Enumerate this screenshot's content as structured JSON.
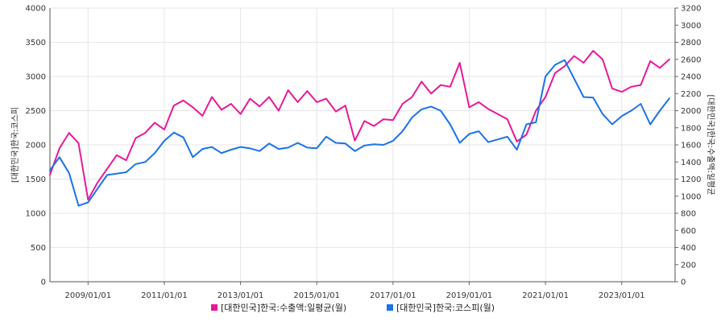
{
  "chart_data": {
    "type": "line",
    "grid": true,
    "legend_position": "bottom-center",
    "x_ticks": [
      "2009/01/01",
      "2011/01/01",
      "2013/01/01",
      "2015/01/01",
      "2017/01/01",
      "2019/01/01",
      "2021/01/01",
      "2023/01/01"
    ],
    "y_left": {
      "label": "[대한민국]한국:코스피",
      "min": 0,
      "max": 4000,
      "ticks": [
        0,
        500,
        1000,
        1500,
        2000,
        2500,
        3000,
        3500,
        4000
      ]
    },
    "y_right": {
      "label": "[대한민국]한국:수출액:일평균",
      "min": 0,
      "max": 3200,
      "ticks": [
        0,
        200,
        400,
        600,
        800,
        1000,
        1200,
        1400,
        1600,
        1800,
        2000,
        2200,
        2400,
        2600,
        2800,
        3000,
        3200
      ]
    },
    "series": [
      {
        "name": "[대한민국]한국:수출액:일평균(월)",
        "axis": "right",
        "color": "#e8189a",
        "points": [
          [
            "2008/01",
            1250
          ],
          [
            "2008/04",
            1560
          ],
          [
            "2008/07",
            1740
          ],
          [
            "2008/10",
            1620
          ],
          [
            "2009/01",
            960
          ],
          [
            "2009/04",
            1160
          ],
          [
            "2009/07",
            1320
          ],
          [
            "2009/10",
            1480
          ],
          [
            "2010/01",
            1420
          ],
          [
            "2010/04",
            1680
          ],
          [
            "2010/07",
            1740
          ],
          [
            "2010/10",
            1860
          ],
          [
            "2011/01",
            1780
          ],
          [
            "2011/04",
            2060
          ],
          [
            "2011/07",
            2120
          ],
          [
            "2011/10",
            2040
          ],
          [
            "2012/01",
            1940
          ],
          [
            "2012/04",
            2160
          ],
          [
            "2012/07",
            2010
          ],
          [
            "2012/10",
            2080
          ],
          [
            "2013/01",
            1960
          ],
          [
            "2013/04",
            2140
          ],
          [
            "2013/07",
            2050
          ],
          [
            "2013/10",
            2160
          ],
          [
            "2014/01",
            2000
          ],
          [
            "2014/04",
            2240
          ],
          [
            "2014/07",
            2100
          ],
          [
            "2014/10",
            2230
          ],
          [
            "2015/01",
            2100
          ],
          [
            "2015/04",
            2140
          ],
          [
            "2015/07",
            1990
          ],
          [
            "2015/10",
            2060
          ],
          [
            "2016/01",
            1650
          ],
          [
            "2016/04",
            1880
          ],
          [
            "2016/07",
            1820
          ],
          [
            "2016/10",
            1900
          ],
          [
            "2017/01",
            1890
          ],
          [
            "2017/04",
            2080
          ],
          [
            "2017/07",
            2160
          ],
          [
            "2017/10",
            2340
          ],
          [
            "2018/01",
            2200
          ],
          [
            "2018/04",
            2300
          ],
          [
            "2018/07",
            2280
          ],
          [
            "2018/10",
            2560
          ],
          [
            "2019/01",
            2040
          ],
          [
            "2019/04",
            2100
          ],
          [
            "2019/07",
            2020
          ],
          [
            "2019/10",
            1960
          ],
          [
            "2020/01",
            1900
          ],
          [
            "2020/04",
            1640
          ],
          [
            "2020/07",
            1720
          ],
          [
            "2020/10",
            2000
          ],
          [
            "2021/01",
            2160
          ],
          [
            "2021/04",
            2440
          ],
          [
            "2021/07",
            2520
          ],
          [
            "2021/10",
            2640
          ],
          [
            "2022/01",
            2560
          ],
          [
            "2022/04",
            2700
          ],
          [
            "2022/07",
            2600
          ],
          [
            "2022/10",
            2260
          ],
          [
            "2023/01",
            2220
          ],
          [
            "2023/04",
            2280
          ],
          [
            "2023/07",
            2300
          ],
          [
            "2023/10",
            2580
          ],
          [
            "2024/01",
            2500
          ],
          [
            "2024/04",
            2600
          ]
        ]
      },
      {
        "name": "[대한민국]한국:코스피(월)",
        "axis": "left",
        "color": "#1a73e8",
        "points": [
          [
            "2008/01",
            1630
          ],
          [
            "2008/04",
            1820
          ],
          [
            "2008/07",
            1590
          ],
          [
            "2008/10",
            1110
          ],
          [
            "2009/01",
            1160
          ],
          [
            "2009/04",
            1360
          ],
          [
            "2009/07",
            1560
          ],
          [
            "2009/10",
            1580
          ],
          [
            "2010/01",
            1600
          ],
          [
            "2010/04",
            1720
          ],
          [
            "2010/07",
            1750
          ],
          [
            "2010/10",
            1880
          ],
          [
            "2011/01",
            2060
          ],
          [
            "2011/04",
            2180
          ],
          [
            "2011/07",
            2110
          ],
          [
            "2011/10",
            1820
          ],
          [
            "2012/01",
            1940
          ],
          [
            "2012/04",
            1970
          ],
          [
            "2012/07",
            1880
          ],
          [
            "2012/10",
            1930
          ],
          [
            "2013/01",
            1970
          ],
          [
            "2013/04",
            1950
          ],
          [
            "2013/07",
            1910
          ],
          [
            "2013/10",
            2020
          ],
          [
            "2014/01",
            1940
          ],
          [
            "2014/04",
            1960
          ],
          [
            "2014/07",
            2030
          ],
          [
            "2014/10",
            1960
          ],
          [
            "2015/01",
            1950
          ],
          [
            "2015/04",
            2120
          ],
          [
            "2015/07",
            2030
          ],
          [
            "2015/10",
            2020
          ],
          [
            "2016/01",
            1910
          ],
          [
            "2016/04",
            1990
          ],
          [
            "2016/07",
            2010
          ],
          [
            "2016/10",
            2000
          ],
          [
            "2017/01",
            2060
          ],
          [
            "2017/04",
            2200
          ],
          [
            "2017/07",
            2400
          ],
          [
            "2017/10",
            2520
          ],
          [
            "2018/01",
            2560
          ],
          [
            "2018/04",
            2500
          ],
          [
            "2018/07",
            2300
          ],
          [
            "2018/10",
            2030
          ],
          [
            "2019/01",
            2160
          ],
          [
            "2019/04",
            2200
          ],
          [
            "2019/07",
            2040
          ],
          [
            "2019/10",
            2080
          ],
          [
            "2020/01",
            2120
          ],
          [
            "2020/04",
            1930
          ],
          [
            "2020/07",
            2300
          ],
          [
            "2020/10",
            2330
          ],
          [
            "2021/01",
            3000
          ],
          [
            "2021/04",
            3170
          ],
          [
            "2021/07",
            3240
          ],
          [
            "2021/10",
            2970
          ],
          [
            "2022/01",
            2700
          ],
          [
            "2022/04",
            2690
          ],
          [
            "2022/07",
            2450
          ],
          [
            "2022/10",
            2300
          ],
          [
            "2023/01",
            2420
          ],
          [
            "2023/04",
            2500
          ],
          [
            "2023/07",
            2600
          ],
          [
            "2023/10",
            2300
          ],
          [
            "2024/01",
            2500
          ],
          [
            "2024/04",
            2680
          ]
        ]
      }
    ]
  }
}
